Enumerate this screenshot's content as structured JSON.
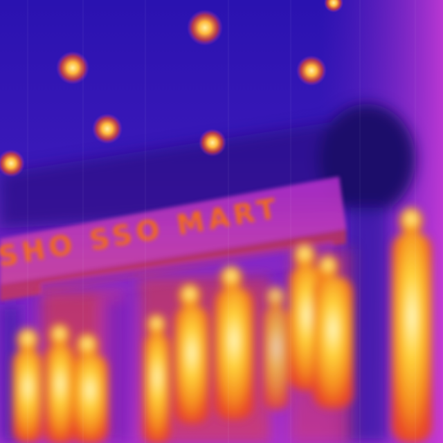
{
  "image": {
    "kind": "thermal-infrared-photo",
    "palette": [
      "#1a0b5e",
      "#3a1aa8",
      "#7a1fc8",
      "#b82fd0",
      "#e8452a",
      "#f58a1e",
      "#ffd23a",
      "#fffbd0"
    ]
  },
  "storefront": {
    "sign_text": "SHO SSO MART"
  }
}
